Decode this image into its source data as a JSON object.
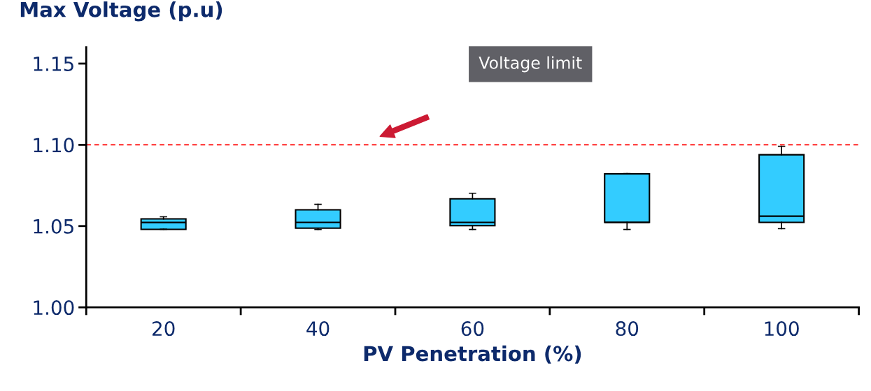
{
  "chart_data": {
    "type": "box",
    "xlabel": "PV Penetration (%)",
    "ylabel": "Max Voltage (p.u)",
    "categories": [
      "20",
      "40",
      "60",
      "80",
      "100"
    ],
    "boxes": [
      {
        "low": 1.048,
        "q1": 1.048,
        "median": 1.0522,
        "q3": 1.0544,
        "high": 1.0557
      },
      {
        "low": 1.0479,
        "q1": 1.0487,
        "median": 1.0523,
        "q3": 1.06,
        "high": 1.0634
      },
      {
        "low": 1.0479,
        "q1": 1.0503,
        "median": 1.0523,
        "q3": 1.0668,
        "high": 1.0702
      },
      {
        "low": 1.0479,
        "q1": 1.0523,
        "median": 1.0523,
        "q3": 1.0821,
        "high": 1.0823
      },
      {
        "low": 1.0484,
        "q1": 1.0523,
        "median": 1.0561,
        "q3": 1.0939,
        "high": 1.0991
      }
    ],
    "color": "#33ccff",
    "ylim": [
      1.0,
      1.16
    ],
    "yticks": [
      {
        "value": 1.0,
        "label": "1.00"
      },
      {
        "value": 1.05,
        "label": "1.05"
      },
      {
        "value": 1.1,
        "label": "1.10"
      },
      {
        "value": 1.15,
        "label": "1.15"
      }
    ],
    "ref_lines": [
      {
        "axis": "y",
        "value": 1.1,
        "color": "#ff0000",
        "line_style": "dashed"
      }
    ],
    "annotations": [
      "Voltage limit"
    ],
    "grid": false,
    "legend": false
  }
}
